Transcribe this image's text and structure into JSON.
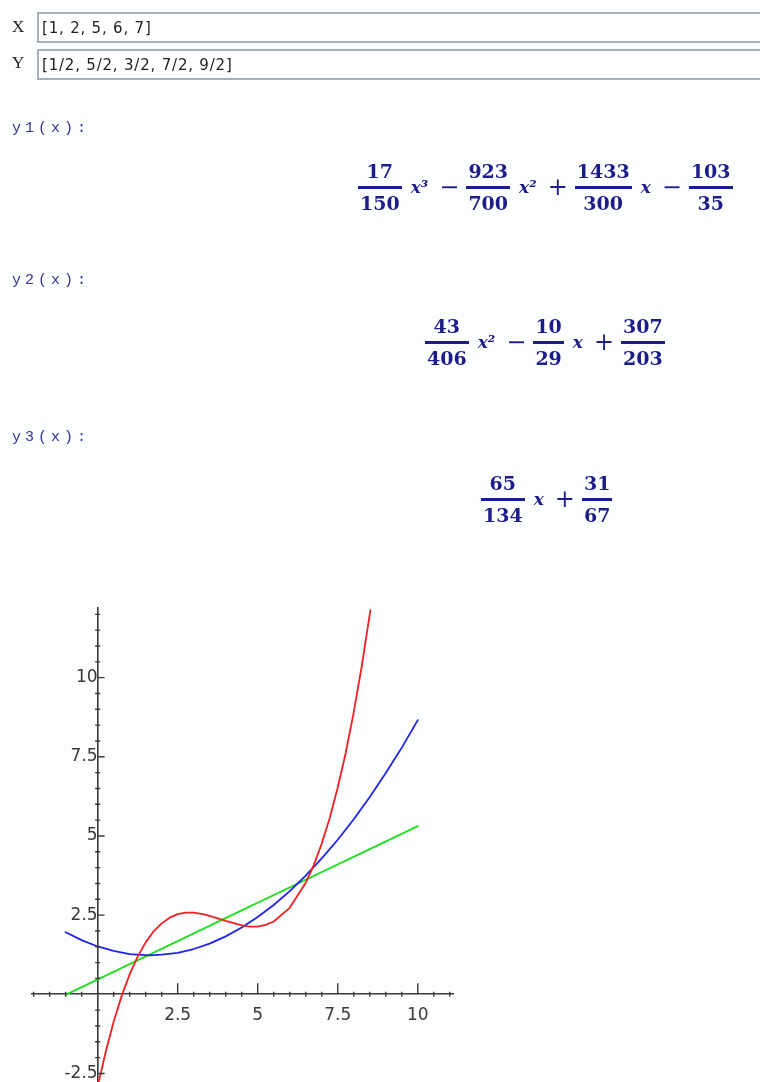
{
  "chart_data": {
    "type": "line",
    "annotations": [
      "X",
      "[1, 2, 5, 6, 7]",
      "Y",
      "[1/2, 5/2, 3/2, 7/2, 9/2]",
      "y1(x):",
      "17",
      "150",
      "x³",
      "−",
      "923",
      "700",
      "x²",
      "+",
      "1433",
      "300",
      "x",
      "−",
      "103",
      "35",
      "y2(x):",
      "43",
      "406",
      "x²",
      "−",
      "10",
      "29",
      "x",
      "+",
      "307",
      "203",
      "y3(x):",
      "65",
      "134",
      "x",
      "+",
      "31",
      "67"
    ],
    "xlim": [
      -2.05,
      11.1
    ],
    "ylim": [
      -2.77,
      12.2
    ],
    "xticks": [
      {
        "value": -2,
        "label": null
      },
      {
        "value": -1.5,
        "label": null
      },
      {
        "value": -1,
        "label": null
      },
      {
        "value": -0.5,
        "label": null
      },
      {
        "value": 0.5,
        "label": null
      },
      {
        "value": 1,
        "label": null
      },
      {
        "value": 1.5,
        "label": null
      },
      {
        "value": 2,
        "label": null
      },
      2.5,
      {
        "value": 3,
        "label": null
      },
      {
        "value": 3.5,
        "label": null
      },
      {
        "value": 4,
        "label": null
      },
      {
        "value": 4.5,
        "label": null
      },
      5,
      {
        "value": 5.5,
        "label": null
      },
      {
        "value": 6,
        "label": null
      },
      {
        "value": 6.5,
        "label": null
      },
      {
        "value": 7,
        "label": null
      },
      7.5,
      {
        "value": 8,
        "label": null
      },
      {
        "value": 8.5,
        "label": null
      },
      {
        "value": 9,
        "label": null
      },
      {
        "value": 9.5,
        "label": null
      },
      10,
      {
        "value": 10.5,
        "label": null
      },
      {
        "value": 11,
        "label": null
      }
    ],
    "yticks": [
      -2.5,
      {
        "value": -2,
        "label": null
      },
      {
        "value": -1.5,
        "label": null
      },
      {
        "value": -1,
        "label": null
      },
      {
        "value": -0.5,
        "label": null
      },
      {
        "value": 0.5,
        "label": null
      },
      {
        "value": 1,
        "label": null
      },
      {
        "value": 1.5,
        "label": null
      },
      {
        "value": 2,
        "label": null
      },
      2.5,
      {
        "value": 3,
        "label": null
      },
      {
        "value": 3.5,
        "label": null
      },
      {
        "value": 4,
        "label": null
      },
      {
        "value": 4.5,
        "label": null
      },
      5,
      {
        "value": 5.5,
        "label": null
      },
      {
        "value": 6,
        "label": null
      },
      {
        "value": 6.5,
        "label": null
      },
      {
        "value": 7,
        "label": null
      },
      7.5,
      {
        "value": 8,
        "label": null
      },
      {
        "value": 8.5,
        "label": null
      },
      {
        "value": 9,
        "label": null
      },
      {
        "value": 9.5,
        "label": null
      },
      10,
      {
        "value": 10.5,
        "label": null
      },
      {
        "value": 11,
        "label": null
      },
      {
        "value": 11.5,
        "label": null
      },
      {
        "value": 12,
        "label": null
      }
    ],
    "series": [
      {
        "color": "#ee2222",
        "x": [
          0.04,
          0.25,
          0.5,
          0.75,
          1,
          1.25,
          1.5,
          1.75,
          2,
          2.25,
          2.5,
          2.75,
          3,
          3.25,
          3.5,
          4,
          4.5,
          4.75,
          5,
          5.25,
          5.5,
          6,
          6.5,
          6.75,
          7,
          7.25,
          7.5,
          7.75,
          8,
          8.25,
          8.52
        ],
        "values": [
          -2.75,
          -1.83,
          -0.87,
          -0.05,
          0.63,
          1.19,
          1.64,
          1.99,
          2.24,
          2.42,
          2.53,
          2.58,
          2.58,
          2.54,
          2.48,
          2.32,
          2.18,
          2.14,
          2.14,
          2.19,
          2.3,
          2.73,
          3.52,
          4.08,
          4.76,
          5.57,
          6.53,
          7.63,
          8.91,
          10.36,
          12.13
        ]
      },
      {
        "color": "#2222ee",
        "x": [
          -1,
          -0.5,
          0,
          0.5,
          1,
          1.63,
          2,
          2.5,
          3,
          3.5,
          4,
          4.5,
          5,
          5.5,
          6,
          6.5,
          7,
          7.5,
          8,
          8.5,
          9,
          9.5,
          10
        ],
        "values": [
          1.96,
          1.71,
          1.51,
          1.37,
          1.27,
          1.23,
          1.25,
          1.31,
          1.43,
          1.6,
          1.83,
          2.11,
          2.44,
          2.82,
          3.26,
          3.75,
          4.29,
          4.88,
          5.53,
          6.23,
          6.99,
          7.79,
          8.66
        ]
      },
      {
        "color": "#22dd22",
        "x": [
          -1,
          4.5,
          10
        ],
        "values": [
          -0.02,
          2.65,
          5.31
        ]
      }
    ]
  }
}
